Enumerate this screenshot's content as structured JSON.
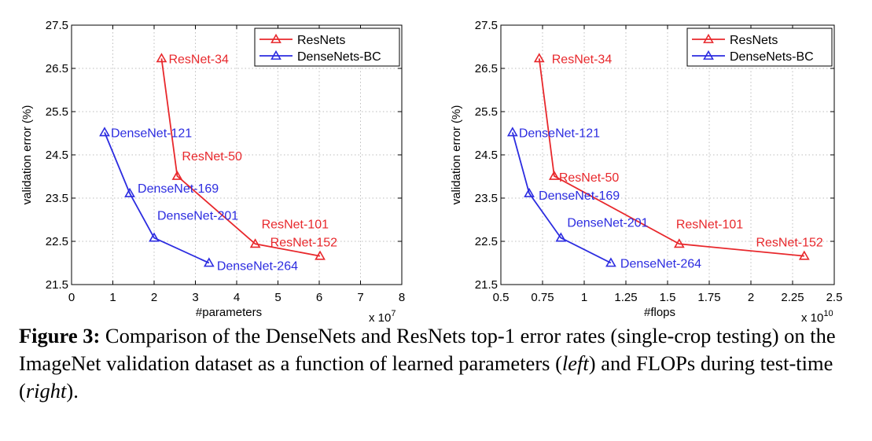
{
  "caption": {
    "label": "Figure 3:",
    "p1": " Comparison of the DenseNets and ResNets top-1 error rates (single-crop testing) on the ImageNet validation dataset as a function of learned parameters (",
    "left": "left",
    "p2": ") and FLOPs during test-time (",
    "right": "right",
    "p3": ")."
  },
  "colors": {
    "resnet": "#e8282c",
    "densenet": "#2c2ce0",
    "grid": "#bdbdbd"
  },
  "chart_data": [
    {
      "type": "line",
      "xlabel": "#parameters",
      "ylabel": "validation error (%)",
      "xlim": [
        0,
        8
      ],
      "ylim": [
        21.5,
        27.5
      ],
      "xticks": [
        0,
        1,
        2,
        3,
        4,
        5,
        6,
        7,
        8
      ],
      "xtick_labels": [
        "0",
        "1",
        "2",
        "3",
        "4",
        "5",
        "6",
        "7",
        "8"
      ],
      "yticks": [
        21.5,
        22.5,
        23.5,
        24.5,
        25.5,
        26.5,
        27.5
      ],
      "ytick_labels": [
        "21.5",
        "22.5",
        "23.5",
        "24.5",
        "25.5",
        "26.5",
        "27.5"
      ],
      "x_multiplier": {
        "base": "x 10",
        "exp": "7"
      },
      "grid": true,
      "legend_position": "top-right",
      "series": [
        {
          "name": "ResNets",
          "color": "#e8282c",
          "points": [
            {
              "x": 2.18,
              "y": 26.73,
              "label": "ResNet-34"
            },
            {
              "x": 2.56,
              "y": 24.01,
              "label": "ResNet-50"
            },
            {
              "x": 4.45,
              "y": 22.44,
              "label": "ResNet-101"
            },
            {
              "x": 6.02,
              "y": 22.16,
              "label": "ResNet-152"
            }
          ]
        },
        {
          "name": "DenseNets-BC",
          "color": "#2c2ce0",
          "points": [
            {
              "x": 0.8,
              "y": 25.02,
              "label": "DenseNet-121"
            },
            {
              "x": 1.41,
              "y": 23.61,
              "label": "DenseNet-169"
            },
            {
              "x": 2.0,
              "y": 22.58,
              "label": "DenseNet-201"
            },
            {
              "x": 3.33,
              "y": 22.0,
              "label": "DenseNet-264"
            }
          ]
        }
      ]
    },
    {
      "type": "line",
      "xlabel": "#flops",
      "ylabel": "validation error (%)",
      "xlim": [
        0.5,
        2.5
      ],
      "ylim": [
        21.5,
        27.5
      ],
      "xticks": [
        0.5,
        0.75,
        1,
        1.25,
        1.5,
        1.75,
        2,
        2.25,
        2.5
      ],
      "xtick_labels": [
        "0.5",
        "0.75",
        "1",
        "1.25",
        "1.5",
        "1.75",
        "2",
        "2.25",
        "2.5"
      ],
      "yticks": [
        21.5,
        22.5,
        23.5,
        24.5,
        25.5,
        26.5,
        27.5
      ],
      "ytick_labels": [
        "21.5",
        "22.5",
        "23.5",
        "24.5",
        "25.5",
        "26.5",
        "27.5"
      ],
      "x_multiplier": {
        "base": "x 10",
        "exp": "10"
      },
      "grid": true,
      "legend_position": "top-right",
      "series": [
        {
          "name": "ResNets",
          "color": "#e8282c",
          "points": [
            {
              "x": 0.73,
              "y": 26.73,
              "label": "ResNet-34"
            },
            {
              "x": 0.82,
              "y": 24.01,
              "label": "ResNet-50"
            },
            {
              "x": 1.57,
              "y": 22.44,
              "label": "ResNet-101"
            },
            {
              "x": 2.32,
              "y": 22.16,
              "label": "ResNet-152"
            }
          ]
        },
        {
          "name": "DenseNets-BC",
          "color": "#2c2ce0",
          "points": [
            {
              "x": 0.57,
              "y": 25.02,
              "label": "DenseNet-121"
            },
            {
              "x": 0.67,
              "y": 23.61,
              "label": "DenseNet-169"
            },
            {
              "x": 0.86,
              "y": 22.58,
              "label": "DenseNet-201"
            },
            {
              "x": 1.16,
              "y": 22.0,
              "label": "DenseNet-264"
            }
          ]
        }
      ]
    }
  ]
}
